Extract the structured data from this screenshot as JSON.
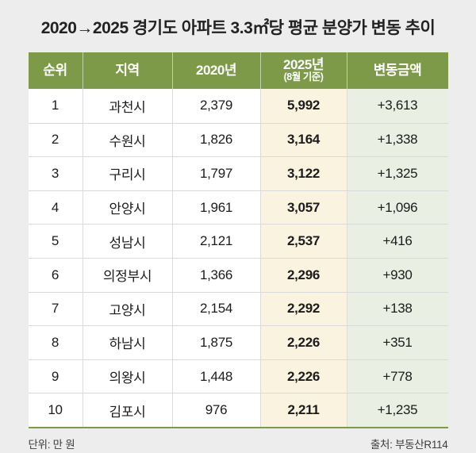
{
  "title": "2020→2025 경기도 아파트 3.3㎡당 평균 분양가 변동 추이",
  "colors": {
    "page_bg": "#ededed",
    "header_green": "#7d9a49",
    "col_2025_bg": "#faf3e0",
    "col_change_bg": "#e9efe2",
    "bottom_line_green": "#7d9a49"
  },
  "table": {
    "headers": {
      "rank": "순위",
      "region": "지역",
      "y2020": "2020년",
      "y2025": "2025년",
      "y2025_sub": "(8월 기준)",
      "change": "변동금액"
    },
    "rows": [
      {
        "rank": "1",
        "region": "과천시",
        "y2020": "2,379",
        "y2025": "5,992",
        "change": "+3,613"
      },
      {
        "rank": "2",
        "region": "수원시",
        "y2020": "1,826",
        "y2025": "3,164",
        "change": "+1,338"
      },
      {
        "rank": "3",
        "region": "구리시",
        "y2020": "1,797",
        "y2025": "3,122",
        "change": "+1,325"
      },
      {
        "rank": "4",
        "region": "안양시",
        "y2020": "1,961",
        "y2025": "3,057",
        "change": "+1,096"
      },
      {
        "rank": "5",
        "region": "성남시",
        "y2020": "2,121",
        "y2025": "2,537",
        "change": "+416"
      },
      {
        "rank": "6",
        "region": "의정부시",
        "y2020": "1,366",
        "y2025": "2,296",
        "change": "+930"
      },
      {
        "rank": "7",
        "region": "고양시",
        "y2020": "2,154",
        "y2025": "2,292",
        "change": "+138"
      },
      {
        "rank": "8",
        "region": "하남시",
        "y2020": "1,875",
        "y2025": "2,226",
        "change": "+351"
      },
      {
        "rank": "9",
        "region": "의왕시",
        "y2020": "1,448",
        "y2025": "2,226",
        "change": "+778"
      },
      {
        "rank": "10",
        "region": "김포시",
        "y2020": "976",
        "y2025": "2,211",
        "change": "+1,235"
      }
    ]
  },
  "footer": {
    "unit": "단위: 만 원",
    "source": "출처: 부동산R114"
  },
  "chart_data": {
    "type": "table",
    "title": "2020→2025 경기도 아파트 3.3㎡당 평균 분양가 변동 추이",
    "unit": "만 원",
    "source": "부동산R114",
    "columns": [
      "순위",
      "지역",
      "2020년",
      "2025년(8월 기준)",
      "변동금액"
    ],
    "rows": [
      [
        1,
        "과천시",
        2379,
        5992,
        3613
      ],
      [
        2,
        "수원시",
        1826,
        3164,
        1338
      ],
      [
        3,
        "구리시",
        1797,
        3122,
        1325
      ],
      [
        4,
        "안양시",
        1961,
        3057,
        1096
      ],
      [
        5,
        "성남시",
        2121,
        2537,
        416
      ],
      [
        6,
        "의정부시",
        1366,
        2296,
        930
      ],
      [
        7,
        "고양시",
        2154,
        2292,
        138
      ],
      [
        8,
        "하남시",
        1875,
        2226,
        351
      ],
      [
        9,
        "의왕시",
        1448,
        2226,
        778
      ],
      [
        10,
        "김포시",
        976,
        2211,
        1235
      ]
    ]
  }
}
